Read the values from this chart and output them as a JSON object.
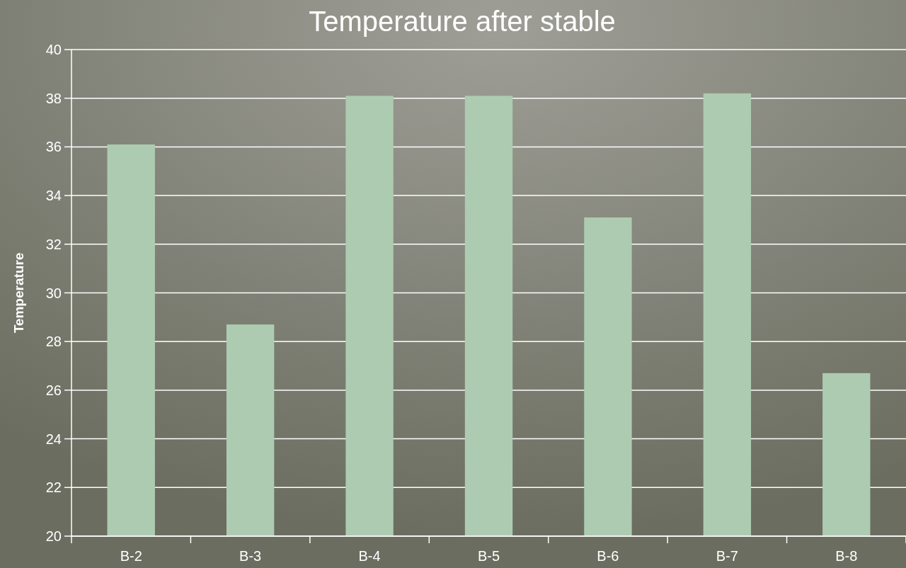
{
  "chart_data": {
    "type": "bar",
    "title": "Temperature after stable",
    "ylabel": "Temperature",
    "categories": [
      "B-2",
      "B-3",
      "B-4",
      "B-5",
      "B-6",
      "B-7",
      "B-8"
    ],
    "values": [
      36.1,
      28.7,
      38.1,
      38.1,
      33.1,
      38.2,
      26.7
    ],
    "color": "#adcbb0",
    "ylim": [
      20,
      40
    ],
    "yticks": [
      20,
      22,
      24,
      26,
      28,
      30,
      32,
      34,
      36,
      38,
      40
    ],
    "grid": "y"
  }
}
